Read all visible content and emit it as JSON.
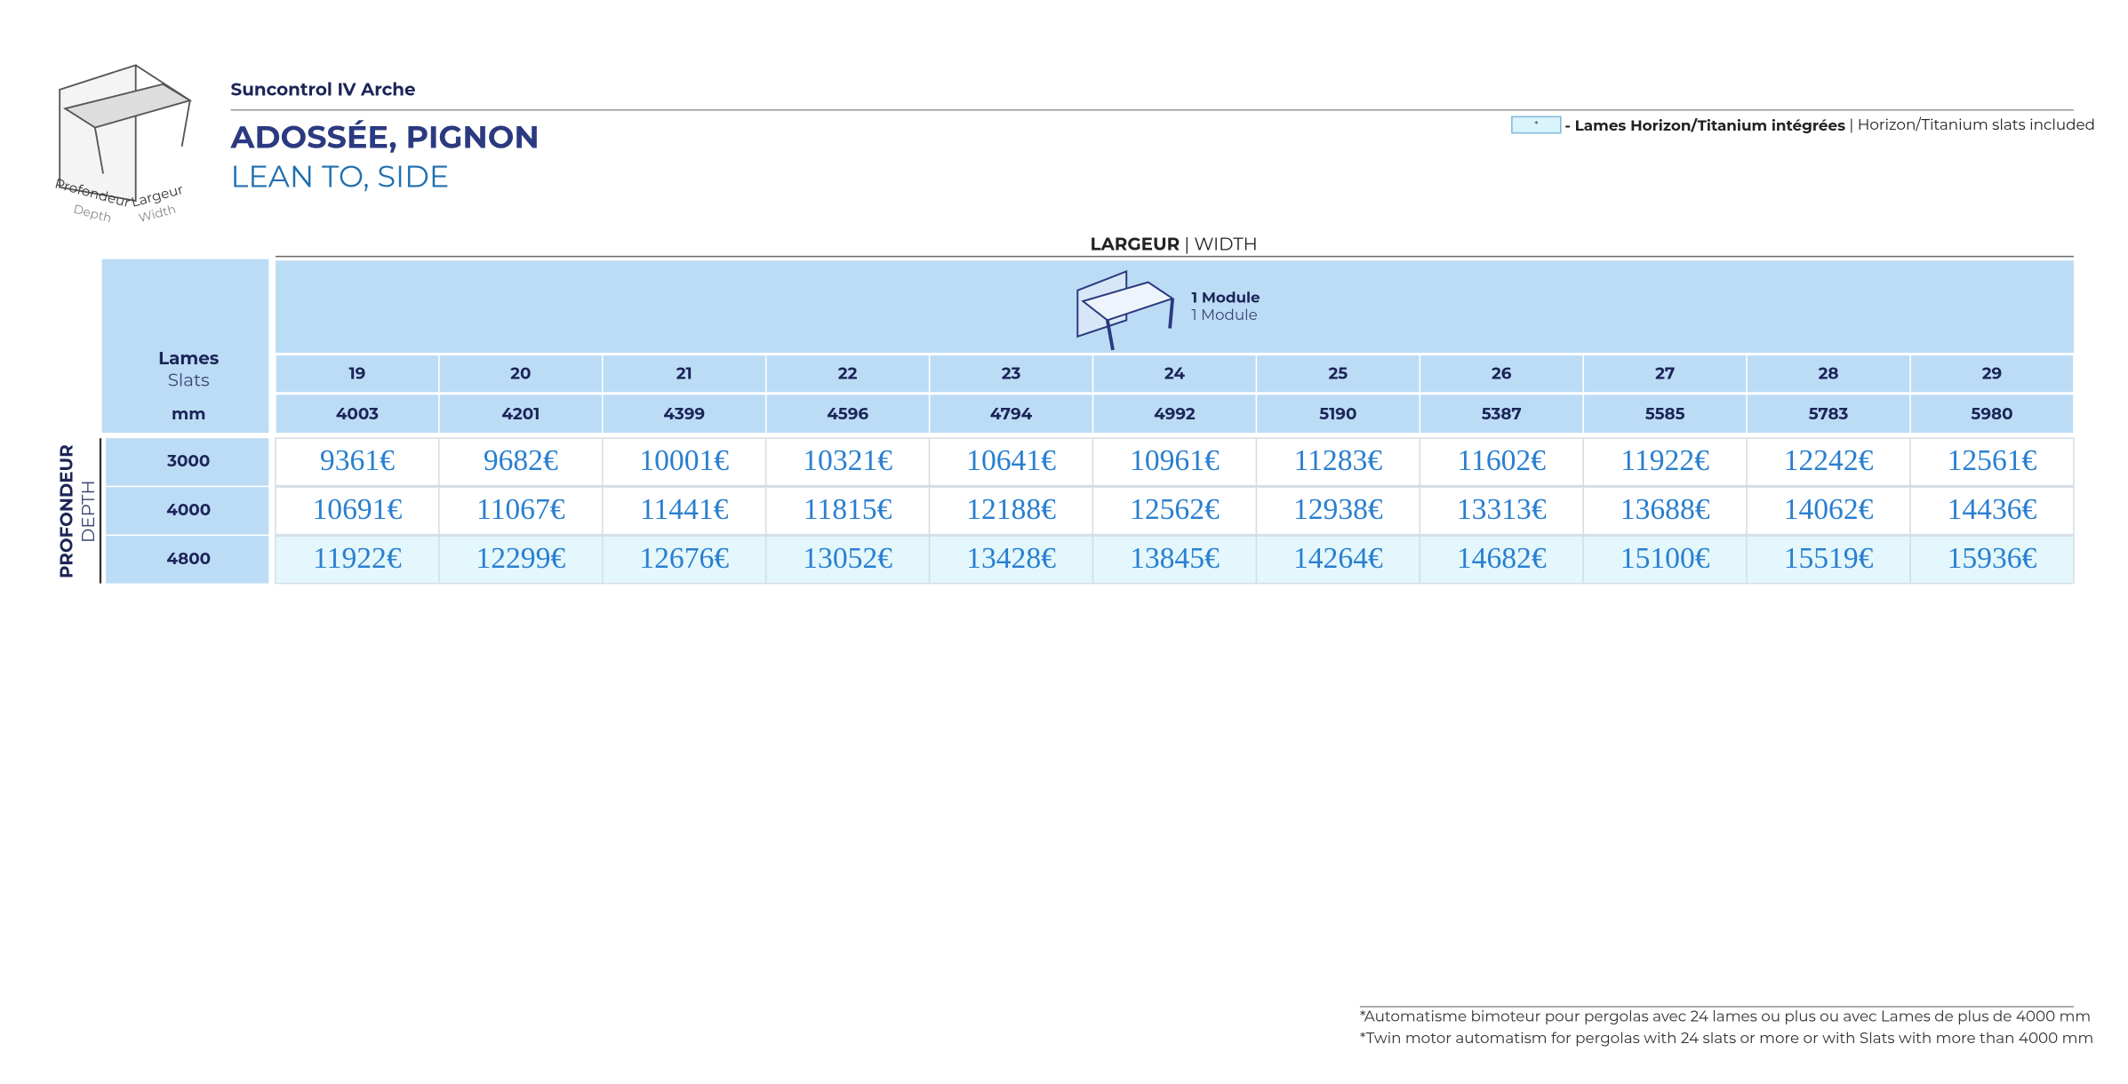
{
  "header": {
    "subtitle": "Suncontrol IV Arche",
    "title": "ADOSSÉE, PIGNON",
    "title_en": "LEAN TO, SIDE"
  },
  "diagram": {
    "depth": "Profondeur",
    "depth_en": "Depth",
    "width": "Largeur",
    "width_en": "Width"
  },
  "legend": {
    "marker": "*",
    "label": "- Lames Horizon/Titanium intégrées",
    "label_en": " | Horizon/Titanium slats included"
  },
  "table": {
    "group_header": "LARGEUR",
    "group_header_en": " | WIDTH",
    "module": "1 Module",
    "module_en": "1 Module",
    "slats_label": "Lames",
    "slats_label_en": "Slats",
    "mm_label": "mm",
    "row_header": "PROFONDEUR",
    "row_header_en": "DEPTH",
    "slats": [
      "19",
      "20",
      "21",
      "22",
      "23",
      "24",
      "25",
      "26",
      "27",
      "28",
      "29"
    ],
    "widths": [
      "4003",
      "4201",
      "4399",
      "4596",
      "4794",
      "4992",
      "5190",
      "5387",
      "5585",
      "5783",
      "5980"
    ],
    "rows": [
      {
        "depth": "3000",
        "prices": [
          "9361€",
          "9682€",
          "10001€",
          "10321€",
          "10641€",
          "10961€",
          "11283€",
          "11602€",
          "11922€",
          "12242€",
          "12561€"
        ]
      },
      {
        "depth": "4000",
        "prices": [
          "10691€",
          "11067€",
          "11441€",
          "11815€",
          "12188€",
          "12562€",
          "12938€",
          "13313€",
          "13688€",
          "14062€",
          "14436€"
        ]
      },
      {
        "depth": "4800",
        "prices": [
          "11922€",
          "12299€",
          "12676€",
          "13052€",
          "13428€",
          "13845€",
          "14264€",
          "14682€",
          "15100€",
          "15519€",
          "15936€"
        ]
      }
    ]
  },
  "footnotes": [
    "*Automatisme bimoteur pour pergolas avec 24 lames ou plus ou avec Lames de plus de 4000 mm",
    "*Twin motor automatism for pergolas with 24 slats or more or with Slats with more than 4000 mm"
  ]
}
